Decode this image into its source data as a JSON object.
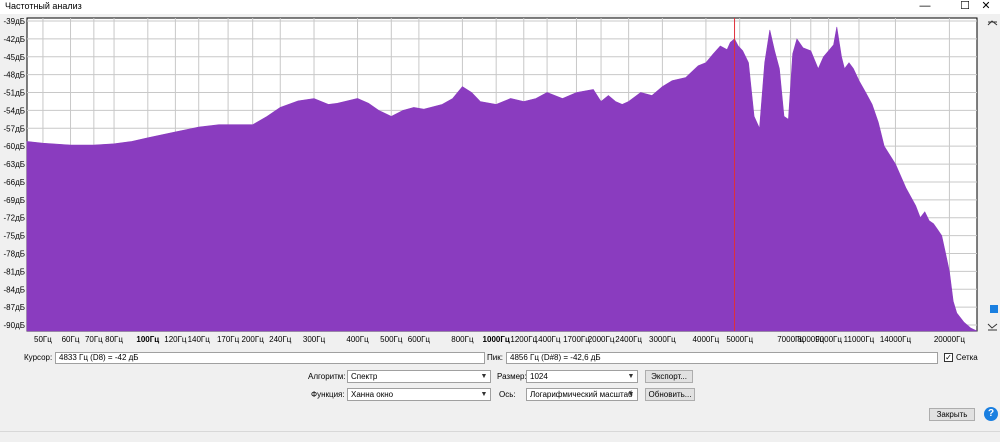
{
  "window": {
    "title": "Частотный анализ",
    "minimize": "—",
    "maximize": "☐",
    "close": "✕"
  },
  "chart_data": {
    "type": "area",
    "yunit": "дБ",
    "ylim": [
      -91,
      -38.5
    ],
    "yticks": [
      -39,
      -42,
      -45,
      -48,
      -51,
      -54,
      -57,
      -60,
      -63,
      -66,
      -69,
      -72,
      -75,
      -78,
      -81,
      -84,
      -87,
      -90
    ],
    "ytick_labels": [
      "-39дБ",
      "-42дБ",
      "-45дБ",
      "-48дБ",
      "-51дБ",
      "-54дБ",
      "-57дБ",
      "-60дБ",
      "-63дБ",
      "-66дБ",
      "-69дБ",
      "-72дБ",
      "-75дБ",
      "-78дБ",
      "-81дБ",
      "-84дБ",
      "-87дБ",
      "-90дБ"
    ],
    "xscale": "log",
    "xlim": [
      45,
      24000
    ],
    "xticks": [
      50,
      60,
      70,
      80,
      100,
      120,
      140,
      170,
      200,
      240,
      300,
      400,
      500,
      600,
      800,
      1000,
      1200,
      1400,
      1700,
      2000,
      2400,
      3000,
      4000,
      5000,
      7000,
      8000,
      9000,
      11000,
      14000,
      20000
    ],
    "xtick_labels": [
      "50Гц",
      "60Гц",
      "70Гц",
      "80Гц",
      "100Гц",
      "120Гц",
      "140Гц",
      "170Гц",
      "200Гц",
      "240Гц",
      "300Гц",
      "400Гц",
      "500Гц",
      "600Гц",
      "800Гц",
      "1000Гц",
      "1200Гц",
      "1400Гц",
      "1700Гц",
      "2000Гц",
      "2400Гц",
      "3000Гц",
      "4000Гц",
      "5000Гц",
      "7000Гц",
      "8000Гц",
      "9000Гц",
      "11000Гц",
      "14000Гц",
      "20000Гц"
    ],
    "bold_xticks": [
      100,
      1000
    ],
    "grid": true,
    "fill_color": "#8a3cbf",
    "cursor_color": "#e0303a",
    "cursor_x": 4833,
    "series": [
      {
        "x": [
          45,
          50,
          60,
          70,
          80,
          90,
          100,
          120,
          140,
          160,
          180,
          200,
          220,
          240,
          270,
          300,
          330,
          350,
          400,
          430,
          460,
          500,
          540,
          580,
          620,
          700,
          750,
          800,
          850,
          900,
          1000,
          1100,
          1200,
          1300,
          1400,
          1550,
          1700,
          1900,
          2000,
          2100,
          2200,
          2300,
          2400,
          2600,
          2800,
          3000,
          3200,
          3500,
          3800,
          4000,
          4200,
          4400,
          4600,
          4700,
          4833,
          4950,
          5100,
          5300,
          5500,
          5700,
          5900,
          6100,
          6300,
          6500,
          6700,
          6900,
          7100,
          7300,
          7600,
          8000,
          8400,
          8700,
          9000,
          9300,
          9500,
          9800,
          10000,
          10300,
          10600,
          11000,
          11500,
          12000,
          12500,
          13000,
          14000,
          15000,
          16000,
          16500,
          17000,
          17500,
          18000,
          18500,
          19000,
          19500,
          20000,
          20500,
          21000,
          22000,
          23000,
          24000
        ],
        "y": [
          -59.2,
          -59.5,
          -59.8,
          -59.8,
          -59.6,
          -59.2,
          -58.6,
          -57.6,
          -56.8,
          -56.4,
          -56.4,
          -56.4,
          -55.0,
          -53.5,
          -52.4,
          -52.0,
          -53.0,
          -52.8,
          -52.0,
          -52.8,
          -54.0,
          -55.0,
          -54.0,
          -53.5,
          -53.8,
          -53.0,
          -52.0,
          -50.0,
          -51.0,
          -52.5,
          -53.0,
          -52.0,
          -52.5,
          -52.0,
          -51.0,
          -52.0,
          -51.0,
          -50.5,
          -52.5,
          -51.5,
          -52.5,
          -53.0,
          -52.5,
          -51.0,
          -51.5,
          -50.0,
          -49.0,
          -48.5,
          -46.5,
          -46.0,
          -44.5,
          -43.2,
          -43.8,
          -42.6,
          -42.0,
          -43.2,
          -44.0,
          -46.0,
          -55.0,
          -57.0,
          -46.0,
          -40.5,
          -44.0,
          -47.0,
          -55.0,
          -55.5,
          -44.5,
          -42.0,
          -43.5,
          -44.0,
          -47.0,
          -45.0,
          -44.0,
          -43.0,
          -40.0,
          -45.0,
          -47.0,
          -46.0,
          -47.0,
          -49.0,
          -51.0,
          -53.0,
          -56.0,
          -60.0,
          -63.0,
          -67.0,
          -70.0,
          -72.0,
          -71.0,
          -72.5,
          -73.0,
          -74.0,
          -75.0,
          -78.0,
          -81.0,
          -86.0,
          -88.0,
          -89.5,
          -90.5,
          -91.0
        ]
      }
    ]
  },
  "controls": {
    "cursor_label": "Курсор:",
    "cursor_value": "4833 Гц (D8) = -42 дБ",
    "peak_label": "Пик:",
    "peak_value": "4856 Гц (D#8) = -42,6 дБ",
    "grid_label": "Сетка",
    "grid_checked": "✓",
    "algorithm_label": "Алгоритм:",
    "algorithm_value": "Спектр",
    "size_label": "Размер:",
    "size_value": "1024",
    "export_button": "Экспорт...",
    "function_label": "Функция:",
    "function_value": "Ханна окно",
    "axis_label": "Ось:",
    "axis_value": "Логарифмический масштаб",
    "refresh_button": "Обновить...",
    "close_button": "Закрыть",
    "help_icon_text": "?"
  }
}
